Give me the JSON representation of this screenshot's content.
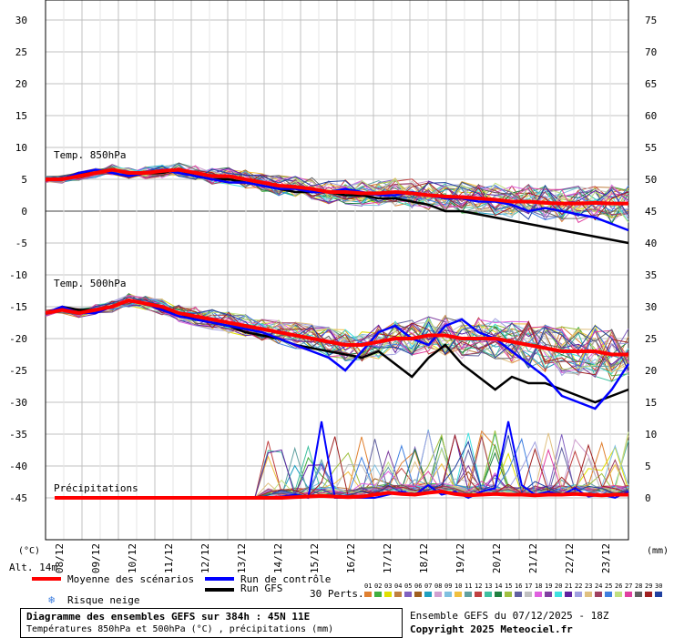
{
  "chart_data": {
    "type": "line",
    "xlabels": [
      "08/12",
      "09/12",
      "10/12",
      "11/12",
      "12/12",
      "13/12",
      "14/12",
      "15/12",
      "16/12",
      "17/12",
      "18/12",
      "19/12",
      "20/12",
      "21/12",
      "22/12",
      "23/12"
    ],
    "left_axis": {
      "unit": "(°C)",
      "ticks": [
        30,
        25,
        20,
        15,
        10,
        5,
        0,
        -5,
        -10,
        -15,
        -20,
        -25,
        -30,
        -35,
        -40,
        -45
      ]
    },
    "right_axis": {
      "unit": "(mm)",
      "ticks": [
        75,
        70,
        65,
        60,
        55,
        50,
        45,
        40,
        35,
        30,
        25,
        20,
        15,
        10,
        5,
        0
      ]
    },
    "panels": {
      "t850": "Temp. 850hPa",
      "t500": "Temp. 500hPa",
      "precip": "Précipitations"
    },
    "altitude": "Alt. 14m",
    "members_count": 30,
    "t850_mean": [
      5,
      5,
      5.5,
      6,
      6.5,
      6,
      6,
      6.3,
      6.5,
      6,
      5.5,
      5.5,
      5,
      4.5,
      4,
      3.8,
      3.5,
      3,
      3,
      2.8,
      2.8,
      3,
      2.8,
      2.5,
      2.3,
      2.2,
      2,
      1.8,
      1.5,
      1.5,
      1.3,
      1.2,
      1.2,
      1.3,
      1.2,
      1.2
    ],
    "t850_control": [
      5,
      5,
      6,
      6.5,
      6,
      5.5,
      6,
      6.5,
      6,
      5.5,
      5,
      4.5,
      4.5,
      4,
      3.5,
      3.5,
      3,
      3,
      3.5,
      3,
      2.5,
      2.5,
      3,
      2.5,
      2,
      2,
      1.5,
      1.5,
      1,
      0,
      0.5,
      0,
      -0.5,
      -1,
      -2,
      -3
    ],
    "t850_gfs": [
      5,
      5,
      6,
      6,
      6.5,
      6,
      6,
      6,
      6.5,
      5.5,
      5,
      5,
      4.5,
      4,
      3.5,
      3,
      3,
      3,
      2.5,
      2.5,
      2,
      2,
      1.5,
      1,
      0,
      0,
      -0.5,
      -1,
      -1.5,
      -2,
      -2.5,
      -3,
      -3.5,
      -4,
      -4.5,
      -5
    ],
    "t500_mean": [
      -16,
      -15.5,
      -16,
      -15.5,
      -15,
      -14,
      -14.5,
      -15,
      -16,
      -16.5,
      -17,
      -17.5,
      -18,
      -18.5,
      -19,
      -19.5,
      -20,
      -20.5,
      -21,
      -21,
      -20.5,
      -20,
      -20,
      -19.5,
      -19.5,
      -20,
      -20,
      -20,
      -20.5,
      -21,
      -21.5,
      -22,
      -22,
      -22,
      -22.5,
      -22.5
    ],
    "t500_control": [
      -16,
      -15,
      -16,
      -16,
      -15,
      -14,
      -14.5,
      -15.5,
      -16.5,
      -17,
      -17.5,
      -18,
      -18.5,
      -19,
      -20,
      -21,
      -22,
      -23,
      -25,
      -22,
      -19,
      -18,
      -20,
      -21,
      -18,
      -17,
      -19,
      -20,
      -22,
      -24,
      -26,
      -29,
      -30,
      -31,
      -28,
      -24
    ],
    "t500_gfs": [
      -16,
      -15,
      -15.5,
      -15.5,
      -15,
      -14,
      -14.5,
      -15.5,
      -16,
      -17,
      -17.5,
      -18,
      -19,
      -19.5,
      -20,
      -21,
      -21.5,
      -22,
      -22.5,
      -23,
      -22,
      -24,
      -26,
      -23,
      -21,
      -24,
      -26,
      -28,
      -26,
      -27,
      -27,
      -28,
      -29,
      -30,
      -29,
      -28
    ],
    "precip_control": [
      0,
      0,
      0,
      0,
      0,
      0,
      0,
      0,
      0,
      0,
      0,
      0,
      0,
      0,
      0,
      0,
      0,
      0.2,
      0.5,
      0,
      12,
      0,
      0,
      0,
      0,
      0.5,
      1,
      0.5,
      2,
      0.5,
      1,
      0,
      1,
      1.5,
      12,
      2,
      0.5,
      1,
      0.5,
      1.5,
      0.2,
      0.5,
      0,
      1
    ],
    "precip_mean": [
      0,
      0,
      0,
      0,
      0,
      0,
      0,
      0,
      0,
      0,
      0,
      0,
      0,
      0,
      0,
      0,
      0,
      0,
      0.1,
      0.2,
      0.3,
      0.2,
      0.1,
      0.2,
      0.5,
      0.8,
      0.6,
      0.5,
      0.8,
      1,
      0.6,
      0.4,
      0.5,
      0.6,
      0.5,
      0.5,
      0.4,
      0.5,
      0.5,
      0.6,
      0.5,
      0.4,
      0.5,
      0.5
    ]
  },
  "legend": {
    "mean": "Moyenne des scénarios",
    "control": "Run de contrôle",
    "gfs": "Run GFS",
    "snow_risk": "Risque neige",
    "perts": "30 Perts.",
    "pert_numbers": [
      "01",
      "02",
      "03",
      "04",
      "05",
      "06",
      "07",
      "08",
      "09",
      "10",
      "11",
      "12",
      "13",
      "14",
      "15",
      "16",
      "17",
      "18",
      "19",
      "20",
      "21",
      "22",
      "23",
      "24",
      "25",
      "26",
      "27",
      "28",
      "29",
      "30"
    ],
    "pert_colors": [
      "#e08030",
      "#40b040",
      "#e0e000",
      "#c08040",
      "#8060c0",
      "#a06020",
      "#20a0c0",
      "#d0a0d0",
      "#80c0e0",
      "#f0c040",
      "#60a0a0",
      "#c04040",
      "#40c0a0",
      "#208040",
      "#a0c040",
      "#6060a0",
      "#c0c0c0",
      "#e060e0",
      "#8040a0",
      "#40e0e0",
      "#6020a0",
      "#a0a0e0",
      "#e0c080",
      "#a04060",
      "#4080e0",
      "#c0e080",
      "#e040a0",
      "#606060",
      "#a02020",
      "#2040a0"
    ]
  },
  "footer": {
    "title": "Diagramme des ensembles GEFS sur 384h : 45N 11E",
    "subtitle": "Températures 850hPa et 500hPa (°C) , précipitations (mm)",
    "ensemble": "Ensemble GEFS du 07/12/2025 - 18Z",
    "copyright": "Copyright 2025 Meteociel.fr"
  },
  "colors": {
    "mean": "#ff0000",
    "control": "#0000ff",
    "gfs": "#000000",
    "grid": "#c0c0c0"
  }
}
